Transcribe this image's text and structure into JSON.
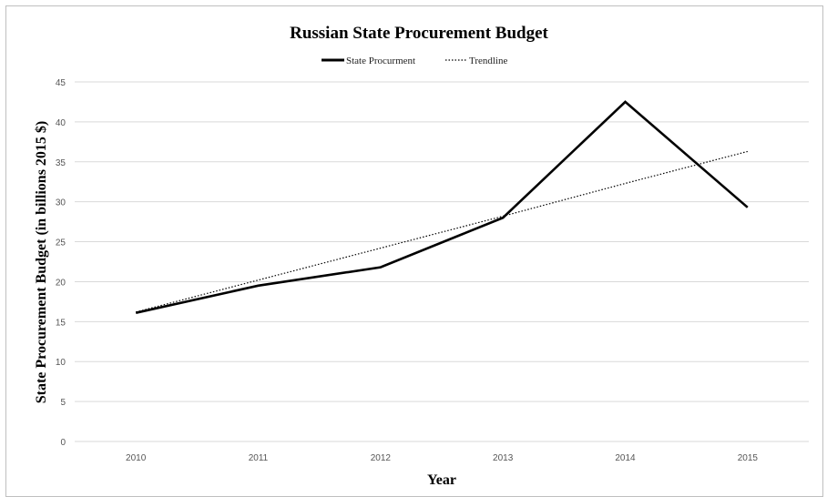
{
  "chart_data": {
    "type": "line",
    "title": "Russian State Procurement Budget",
    "xlabel": "Year",
    "ylabel": "State Procurement Budget (in billions 2015 $)",
    "categories": [
      "2010",
      "2011",
      "2012",
      "2013",
      "2014",
      "2015"
    ],
    "series": [
      {
        "name": "State Procurment",
        "values": [
          16.1,
          19.5,
          21.8,
          28.0,
          42.5,
          29.3
        ],
        "style": "solid",
        "color": "#000000"
      },
      {
        "name": "Trendline",
        "values": [
          16.2,
          20.2,
          24.2,
          28.2,
          32.3,
          36.3
        ],
        "style": "dotted",
        "color": "#000000"
      }
    ],
    "ylim": [
      0,
      45
    ],
    "yticks": [
      0,
      5,
      10,
      15,
      20,
      25,
      30,
      35,
      40,
      45
    ],
    "grid": true,
    "legend_position": "top-center"
  }
}
